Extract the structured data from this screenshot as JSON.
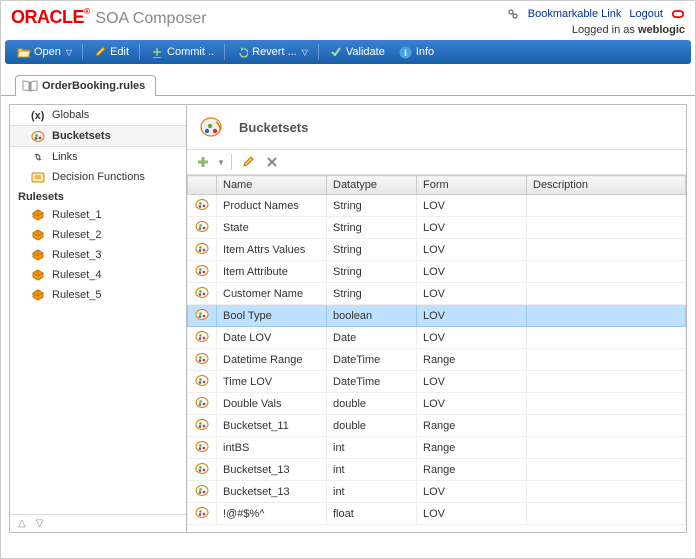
{
  "header": {
    "logo_main": "ORACLE",
    "logo_tm": "®",
    "app_name": "SOA Composer",
    "bookmark_link": "Bookmarkable Link",
    "logout": "Logout",
    "logged_in_prefix": "Logged in as ",
    "username": "weblogic"
  },
  "toolbar": {
    "open": "Open",
    "edit": "Edit",
    "commit": "Commit ..",
    "revert": "Revert ...",
    "validate": "Validate",
    "info": "Info"
  },
  "tab": {
    "title": "OrderBooking.rules"
  },
  "sidebar": {
    "items": [
      {
        "label": "Globals",
        "icon": "globals"
      },
      {
        "label": "Bucketsets",
        "icon": "bucketsets",
        "selected": true
      },
      {
        "label": "Links",
        "icon": "links"
      },
      {
        "label": "Decision Functions",
        "icon": "decision"
      }
    ],
    "rulesets_header": "Rulesets",
    "rulesets": [
      {
        "label": "Ruleset_1"
      },
      {
        "label": "Ruleset_2"
      },
      {
        "label": "Ruleset_3"
      },
      {
        "label": "Ruleset_4"
      },
      {
        "label": "Ruleset_5"
      }
    ],
    "up": "△",
    "down": "▽"
  },
  "content": {
    "title": "Bucketsets",
    "columns": [
      "",
      "Name",
      "Datatype",
      "Form",
      "Description"
    ],
    "rows": [
      {
        "name": "Product Names",
        "datatype": "String",
        "form": "LOV",
        "desc": ""
      },
      {
        "name": "State",
        "datatype": "String",
        "form": "LOV",
        "desc": ""
      },
      {
        "name": "Item Attrs Values",
        "datatype": "String",
        "form": "LOV",
        "desc": ""
      },
      {
        "name": "Item Attribute",
        "datatype": "String",
        "form": "LOV",
        "desc": ""
      },
      {
        "name": "Customer Name",
        "datatype": "String",
        "form": "LOV",
        "desc": ""
      },
      {
        "name": "Bool Type",
        "datatype": "boolean",
        "form": "LOV",
        "desc": "",
        "selected": true
      },
      {
        "name": "Date LOV",
        "datatype": "Date",
        "form": "LOV",
        "desc": ""
      },
      {
        "name": "Datetime Range",
        "datatype": "DateTime",
        "form": "Range",
        "desc": ""
      },
      {
        "name": "Time LOV",
        "datatype": "DateTime",
        "form": "LOV",
        "desc": ""
      },
      {
        "name": "Double Vals",
        "datatype": "double",
        "form": "LOV",
        "desc": ""
      },
      {
        "name": "Bucketset_11",
        "datatype": "double",
        "form": "Range",
        "desc": ""
      },
      {
        "name": "intBS",
        "datatype": "int",
        "form": "Range",
        "desc": ""
      },
      {
        "name": "Bucketset_13",
        "datatype": "int",
        "form": "Range",
        "desc": ""
      },
      {
        "name": "Bucketset_13",
        "datatype": "int",
        "form": "LOV",
        "desc": ""
      },
      {
        "name": "!@#$%^",
        "datatype": "float",
        "form": "LOV",
        "desc": ""
      }
    ]
  },
  "colors": {
    "oracle_red": "#e00",
    "toolbar_grad_top": "#3b7fd4",
    "toolbar_grad_bot": "#185fa8",
    "link_blue": "#003399",
    "row_select_bg": "#bde1ff"
  }
}
